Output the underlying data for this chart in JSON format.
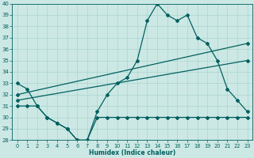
{
  "xlabel": "Humidex (Indice chaleur)",
  "x": [
    0,
    1,
    2,
    3,
    4,
    5,
    6,
    7,
    8,
    9,
    10,
    11,
    12,
    13,
    14,
    15,
    16,
    17,
    18,
    19,
    20,
    21,
    22,
    23
  ],
  "line1": [
    33,
    32.5,
    31,
    30,
    29.5,
    29,
    28,
    28,
    30.5,
    32,
    33,
    33.5,
    35,
    38.5,
    40,
    39,
    38.5,
    39,
    37,
    36.5,
    35,
    32.5,
    31.5,
    30.5
  ],
  "line2": [
    31,
    31,
    31,
    30,
    29.5,
    29,
    28,
    28,
    30,
    30,
    30,
    30,
    30,
    30,
    30,
    30,
    30,
    30,
    30,
    30,
    30,
    30,
    30,
    30
  ],
  "line3_x": [
    0,
    23
  ],
  "line3_y": [
    32,
    36.5
  ],
  "line4_x": [
    0,
    23
  ],
  "line4_y": [
    31.5,
    35
  ],
  "bg_color": "#cce8e4",
  "grid_color": "#aad4cc",
  "line_color": "#006060",
  "ylim": [
    28,
    40
  ],
  "xlim": [
    -0.5,
    23.5
  ],
  "yticks": [
    28,
    29,
    30,
    31,
    32,
    33,
    34,
    35,
    36,
    37,
    38,
    39,
    40
  ],
  "xticks": [
    0,
    1,
    2,
    3,
    4,
    5,
    6,
    7,
    8,
    9,
    10,
    11,
    12,
    13,
    14,
    15,
    16,
    17,
    18,
    19,
    20,
    21,
    22,
    23
  ]
}
